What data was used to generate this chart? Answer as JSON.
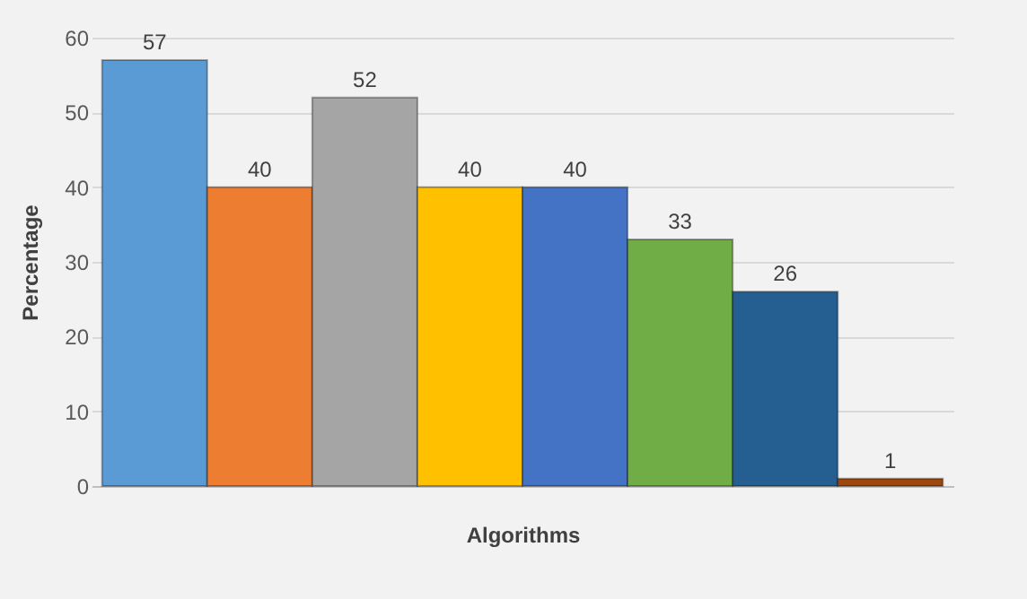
{
  "chart_data": {
    "type": "bar",
    "xlabel": "Algorithms",
    "ylabel": "Percentage",
    "categories": [
      null,
      null,
      null,
      null,
      null,
      null,
      null,
      null
    ],
    "values": [
      57,
      40,
      52,
      40,
      40,
      33,
      26,
      1
    ],
    "colors": [
      "#5b9bd5",
      "#ed7d31",
      "#a5a5a5",
      "#ffc000",
      "#4472c4",
      "#70ad47",
      "#255e91",
      "#9e480e"
    ],
    "ylim": [
      0,
      60
    ],
    "yticks": [
      0,
      10,
      20,
      30,
      40,
      50,
      60
    ],
    "grid": "y",
    "data_labels": true
  }
}
